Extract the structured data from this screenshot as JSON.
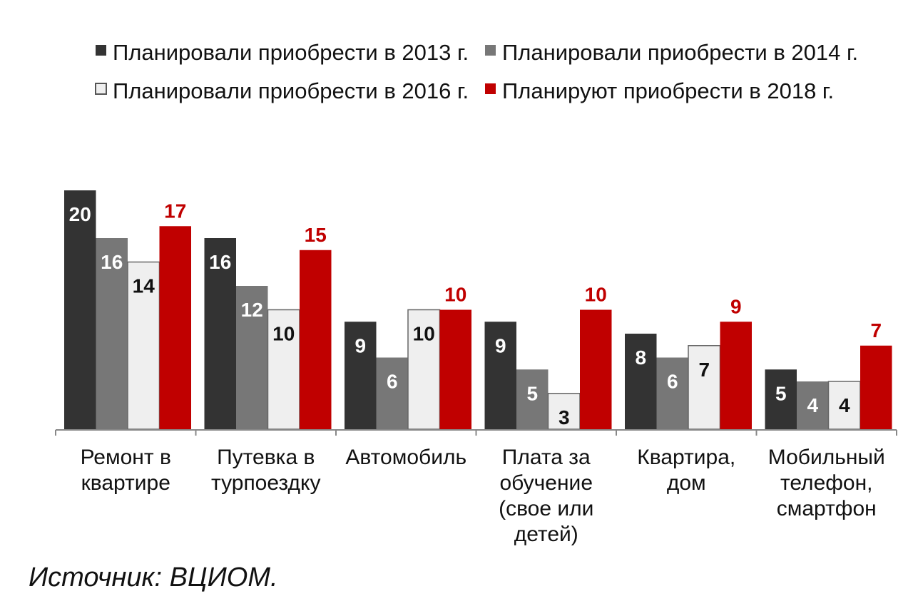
{
  "chart_data": {
    "type": "bar",
    "categories": [
      [
        "Ремонт в",
        "квартире"
      ],
      [
        "Путевка в",
        "турпоездку"
      ],
      [
        "Автомобиль"
      ],
      [
        "Плата за",
        "обучение",
        "(свое или",
        "детей)"
      ],
      [
        "Квартира,",
        "дом"
      ],
      [
        "Мобильный",
        "телефон,",
        "смартфон"
      ]
    ],
    "series": [
      {
        "name": "Планировали приобрести в 2013 г.",
        "values": [
          20,
          16,
          9,
          9,
          8,
          5
        ],
        "color": "#333333",
        "label_color": "#ffffff"
      },
      {
        "name": "Планировали приобрести в 2014 г.",
        "values": [
          16,
          12,
          6,
          5,
          6,
          4
        ],
        "color": "#777777",
        "label_color": "#ffffff"
      },
      {
        "name": "Планировали приобрести в 2016 г.",
        "values": [
          14,
          10,
          10,
          3,
          7,
          4
        ],
        "color": "#efefef",
        "label_color": "#111111"
      },
      {
        "name": "Планируют приобрести в 2018 г.",
        "values": [
          17,
          15,
          10,
          10,
          9,
          7
        ],
        "color": "#c00000",
        "label_color": "#c00000"
      }
    ],
    "legend_position": "top",
    "grid": false,
    "ylim": [
      0,
      20
    ]
  },
  "source": "Источник: ВЦИОМ."
}
